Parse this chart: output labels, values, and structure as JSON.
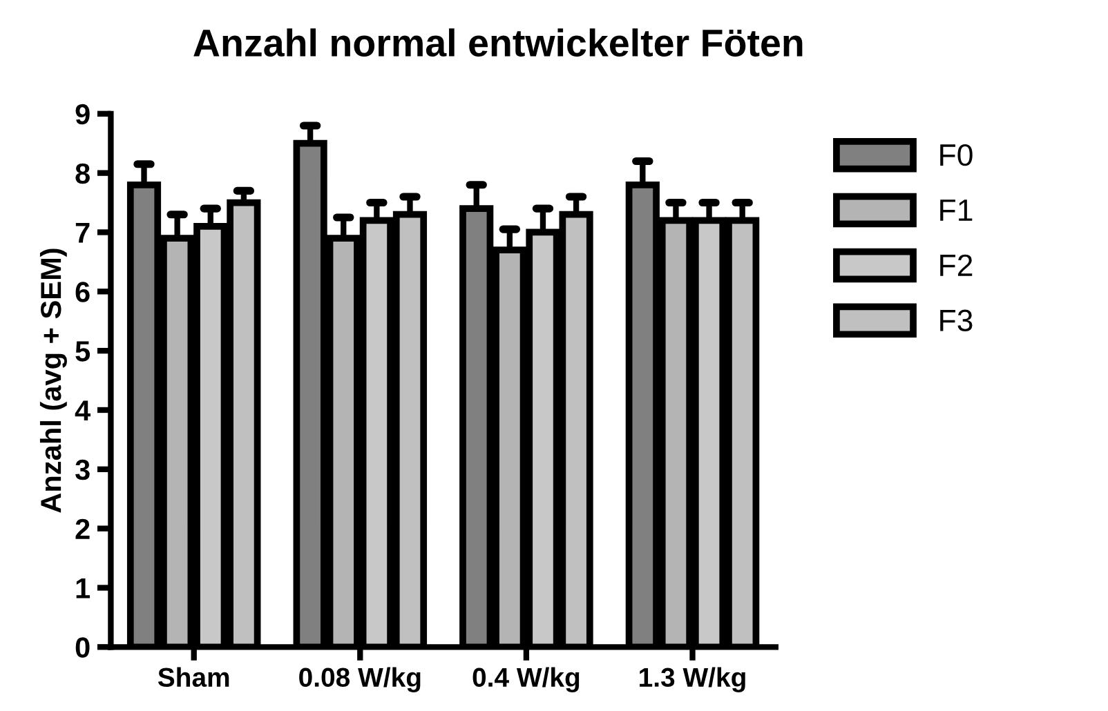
{
  "chart_data": {
    "type": "bar",
    "title": "Anzahl normal entwickelter Föten",
    "ylabel": "Anzahl (avg + SEM)",
    "categories": [
      "Sham",
      "0.08 W/kg",
      "0.4 W/kg",
      "1.3 W/kg"
    ],
    "series": [
      {
        "name": "F0",
        "color": "#808080",
        "values": [
          7.8,
          8.5,
          7.4,
          7.8
        ],
        "errors": [
          [
            7.8,
            8.15
          ],
          [
            8.5,
            8.8
          ],
          [
            7.4,
            7.8
          ],
          [
            7.8,
            8.2
          ]
        ]
      },
      {
        "name": "F1",
        "color": "#b4b4b4",
        "values": [
          6.9,
          6.9,
          6.7,
          7.2
        ],
        "errors": [
          [
            6.9,
            7.3
          ],
          [
            6.9,
            7.25
          ],
          [
            6.7,
            7.05
          ],
          [
            7.2,
            7.5
          ]
        ]
      },
      {
        "name": "F2",
        "color": "#c8c8c8",
        "values": [
          7.1,
          7.2,
          7.0,
          7.2
        ],
        "errors": [
          [
            7.1,
            7.4
          ],
          [
            7.2,
            7.5
          ],
          [
            7.0,
            7.4
          ],
          [
            7.2,
            7.5
          ]
        ]
      },
      {
        "name": "F3",
        "color": "#c0c0c0",
        "values": [
          7.5,
          7.3,
          7.3,
          7.2
        ],
        "errors": [
          [
            7.5,
            7.7
          ],
          [
            7.3,
            7.6
          ],
          [
            7.3,
            7.6
          ],
          [
            7.2,
            7.5
          ]
        ]
      }
    ],
    "ylim": [
      0,
      9
    ],
    "yticks": [
      0,
      1,
      2,
      3,
      4,
      5,
      6,
      7,
      8,
      9
    ],
    "grid": false,
    "legend": "top right"
  }
}
